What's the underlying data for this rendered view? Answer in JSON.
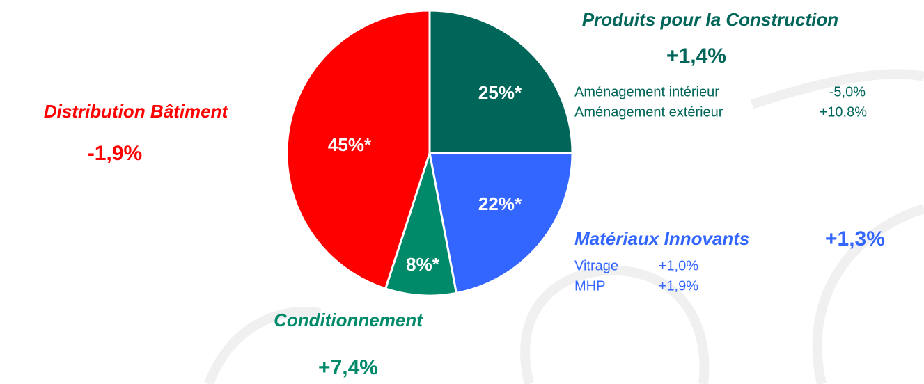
{
  "chart_data": {
    "type": "pie",
    "categories": [
      "Produits pour la Construction",
      "Matériaux Innovants",
      "Conditionnement",
      "Distribution Bâtiment"
    ],
    "values": [
      25,
      22,
      8,
      45
    ],
    "value_labels": [
      "25%*",
      "22%*",
      "8%*",
      "45%*"
    ],
    "colors": [
      "#00665a",
      "#3366ff",
      "#008a6a",
      "#ff0000"
    ],
    "growth": [
      "+1,4%",
      "+1,3%",
      "+7,4%",
      "-1,9%"
    ],
    "details": [
      [
        {
          "name": "Aménagement intérieur",
          "value": "-5,0%"
        },
        {
          "name": "Aménagement extérieur",
          "value": "+10,8%"
        }
      ],
      [
        {
          "name": "Vitrage",
          "value": "+1,0%"
        },
        {
          "name": "MHP",
          "value": "+1,9%"
        }
      ],
      [],
      []
    ]
  }
}
